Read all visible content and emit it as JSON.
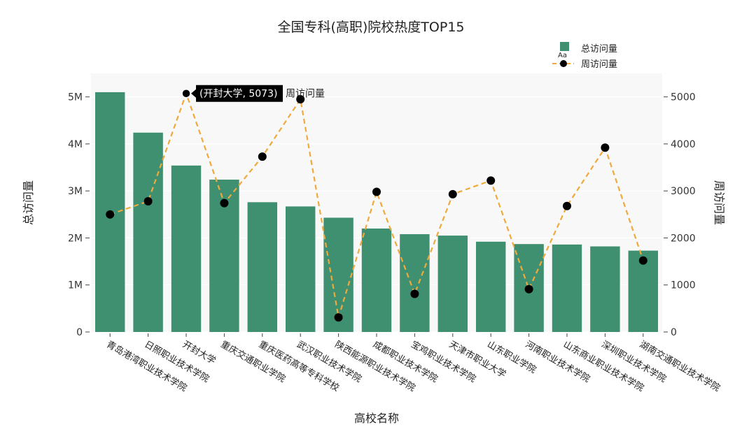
{
  "chart_data": {
    "type": "bar+line",
    "title": "全国专科(高职)院校热度TOP15",
    "xlabel": "高校名称",
    "ylabel_left": "总访问量",
    "ylabel_right": "周访问量",
    "categories": [
      "青岛港湾职业技术学院",
      "日照职业技术学院",
      "开封大学",
      "重庆交通职业学院",
      "重庆医药高等专科学校",
      "武汉职业技术学院",
      "陕西能源职业技术学院",
      "成都职业技术学院",
      "宝鸡职业技术学院",
      "天津市职业大学",
      "山东职业学院",
      "河南职业技术学院",
      "山东商业职业技术学院",
      "深圳职业技术学院",
      "湖南交通职业技术学院"
    ],
    "series": [
      {
        "name": "总访问量",
        "type": "bar",
        "color": "#3f8f71",
        "axis": "left",
        "values": [
          5100000,
          4240000,
          3540000,
          3240000,
          2760000,
          2670000,
          2430000,
          2200000,
          2080000,
          2050000,
          1920000,
          1870000,
          1860000,
          1820000,
          1730000
        ]
      },
      {
        "name": "周访问量",
        "type": "line",
        "color": "#f0a93c",
        "marker_color": "#000000",
        "axis": "right",
        "values": [
          2500,
          2780,
          5073,
          2740,
          3730,
          4950,
          310,
          2980,
          810,
          2930,
          3220,
          910,
          2680,
          3920,
          1520
        ]
      }
    ],
    "ylim_left": [
      0,
      5500000
    ],
    "ylim_right": [
      0,
      5500
    ],
    "left_ticks": [
      {
        "value": 0,
        "label": "0"
      },
      {
        "value": 1000000,
        "label": "1M"
      },
      {
        "value": 2000000,
        "label": "2M"
      },
      {
        "value": 3000000,
        "label": "3M"
      },
      {
        "value": 4000000,
        "label": "4M"
      },
      {
        "value": 5000000,
        "label": "5M"
      }
    ],
    "right_ticks": [
      {
        "value": 0,
        "label": "0"
      },
      {
        "value": 1000,
        "label": "1000"
      },
      {
        "value": 2000,
        "label": "2000"
      },
      {
        "value": 3000,
        "label": "3000"
      },
      {
        "value": 4000,
        "label": "4000"
      },
      {
        "value": 5000,
        "label": "5000"
      }
    ],
    "legend_position": "top-right",
    "legend_swatch_text": "Aa",
    "hover": {
      "index": 2,
      "label": "(开封大学, 5073)",
      "series_name": "周访问量"
    }
  }
}
